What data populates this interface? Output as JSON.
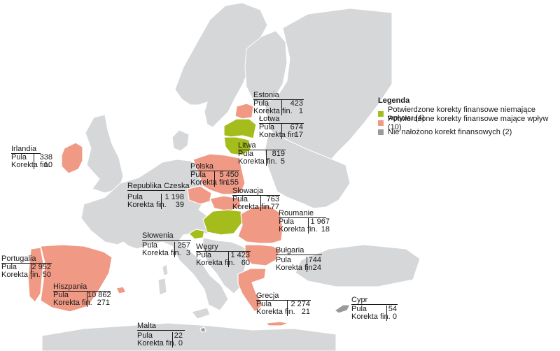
{
  "legend": {
    "title": "Legenda",
    "items": [
      {
        "label": "Potwierdzone korekty finansowe niemające wpływu (4)",
        "color": "#a4bc1c"
      },
      {
        "label": "Potwierdzone korekty finansowe mające wpływ (10)",
        "color": "#f09a86"
      },
      {
        "label": "Nie nałożono korekt finansowych (2)",
        "color": "#9a9a9a"
      }
    ]
  },
  "colors": {
    "land": "#d6d7d9",
    "no_impact": "#a4bc1c",
    "impact": "#f09a86",
    "none": "#9a9a9a"
  },
  "row_labels": {
    "pool": "Pula",
    "correction": "Korekta fin."
  },
  "countries": [
    {
      "id": "estonia",
      "name": "Estonia",
      "pool": "423",
      "correction": "1"
    },
    {
      "id": "latvia",
      "name": "Łotwa",
      "pool": "674",
      "correction": "17"
    },
    {
      "id": "lithuania",
      "name": "Litwa",
      "pool": "819",
      "correction": "5"
    },
    {
      "id": "ireland",
      "name": "Irlandia",
      "pool": "338",
      "correction": "10"
    },
    {
      "id": "poland",
      "name": "Polska",
      "pool": "5 450",
      "correction": "155"
    },
    {
      "id": "czech",
      "name": "Republika Czeska",
      "pool": "1 198",
      "correction": "39"
    },
    {
      "id": "slovakia",
      "name": "Słowacja",
      "pool": "763",
      "correction": "77"
    },
    {
      "id": "romania",
      "name": "Roumanie",
      "pool": "1 967",
      "correction": "18"
    },
    {
      "id": "slovenia",
      "name": "Słowenia",
      "pool": "257",
      "correction": "3"
    },
    {
      "id": "hungary",
      "name": "Węgry",
      "pool": "1 423",
      "correction": "60"
    },
    {
      "id": "bulgaria",
      "name": "Bułgaria",
      "pool": "744",
      "correction": "24"
    },
    {
      "id": "portugal",
      "name": "Portugalia",
      "pool": "2 952",
      "correction": "50"
    },
    {
      "id": "spain",
      "name": "Hiszpania",
      "pool": "10 862",
      "correction": "271"
    },
    {
      "id": "greece",
      "name": "Grecja",
      "pool": "2 274",
      "correction": "21"
    },
    {
      "id": "cyprus",
      "name": "Cypr",
      "pool": "54",
      "correction": "0"
    },
    {
      "id": "malta",
      "name": "Malta",
      "pool": "22",
      "correction": "0"
    }
  ]
}
